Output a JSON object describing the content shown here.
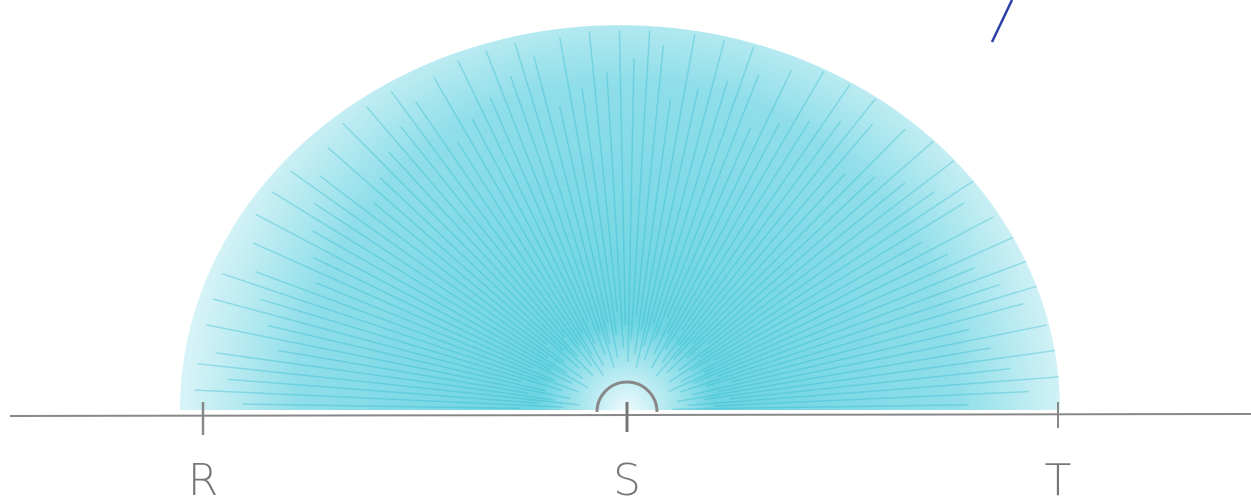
{
  "points": [
    {
      "label": "R"
    },
    {
      "label": "S"
    },
    {
      "label": "T"
    }
  ]
}
